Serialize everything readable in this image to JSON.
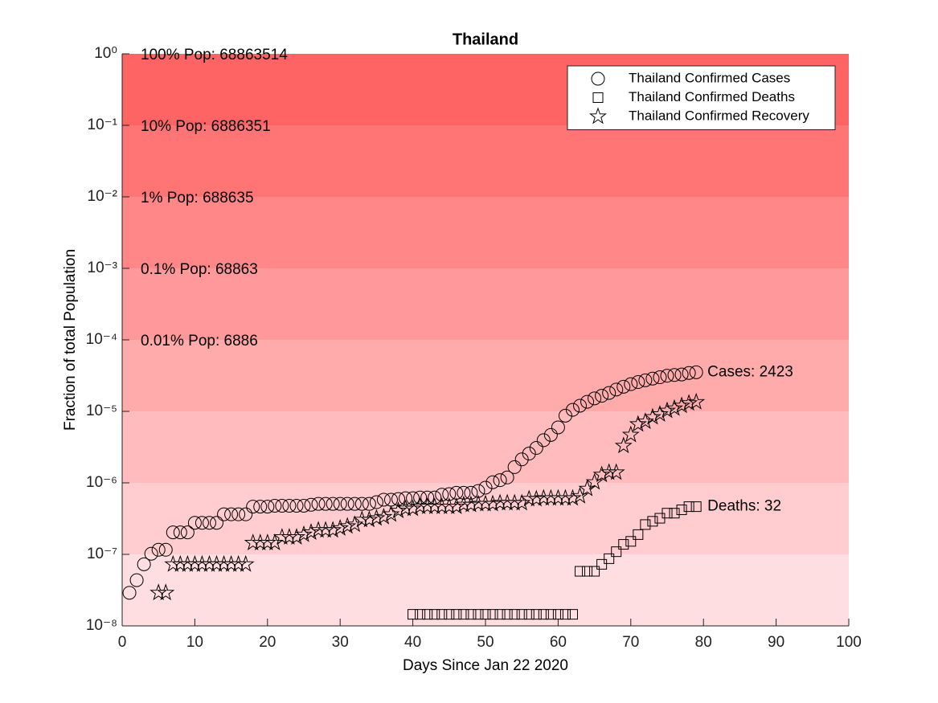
{
  "chart_data": {
    "type": "scatter",
    "title": "Thailand",
    "x_label": "Days Since Jan 22 2020",
    "y_label": "Fraction of total Population",
    "log_y": true,
    "legend": "top-right",
    "xlim": [
      0,
      100
    ],
    "xticks": [
      0,
      10,
      20,
      30,
      40,
      50,
      60,
      70,
      80,
      90,
      100
    ],
    "ylim": [
      1e-08,
      1
    ],
    "yticks": [
      {
        "value": 1e-08,
        "label": "10⁻⁸"
      },
      {
        "value": 1e-07,
        "label": "10⁻⁷"
      },
      {
        "value": 1e-06,
        "label": "10⁻⁶"
      },
      {
        "value": 1e-05,
        "label": "10⁻⁵"
      },
      {
        "value": 0.0001,
        "label": "10⁻⁴"
      },
      {
        "value": 0.001,
        "label": "10⁻³"
      },
      {
        "value": 0.01,
        "label": "10⁻²"
      },
      {
        "value": 0.1,
        "label": "10⁻¹"
      },
      {
        "value": 1,
        "label": "10⁰"
      }
    ],
    "population_labels": [
      "0.01% Pop: 6886",
      "0.1% Pop: 68863",
      "1% Pop: 688635",
      "10% Pop: 6886351",
      "100% Pop: 68863514"
    ],
    "end_labels": [
      "Cases: 2423",
      "Deaths: 32"
    ],
    "series": [
      {
        "name": "Thailand Confirmed Cases",
        "color": "#000000",
        "marker": "circle",
        "x": [
          1,
          2,
          3,
          4,
          5,
          6,
          7,
          8,
          9,
          10,
          11,
          12,
          13,
          14,
          15,
          16,
          17,
          18,
          19,
          20,
          21,
          22,
          23,
          24,
          25,
          26,
          27,
          28,
          29,
          30,
          31,
          32,
          33,
          34,
          35,
          36,
          37,
          38,
          39,
          40,
          41,
          42,
          43,
          44,
          45,
          46,
          47,
          48,
          49,
          50,
          51,
          52,
          53,
          54,
          55,
          56,
          57,
          58,
          59,
          60,
          61,
          62,
          63,
          64,
          65,
          66,
          67,
          68,
          69,
          70,
          71,
          72,
          73,
          74,
          75,
          76,
          77,
          78,
          79
        ],
        "values": [
          2.9e-08,
          4.36e-08,
          7.26e-08,
          1.02e-07,
          1.16e-07,
          1.16e-07,
          2.03e-07,
          2.03e-07,
          2.03e-07,
          2.76e-07,
          2.76e-07,
          2.76e-07,
          2.76e-07,
          3.63e-07,
          3.63e-07,
          3.63e-07,
          3.63e-07,
          4.65e-07,
          4.65e-07,
          4.65e-07,
          4.79e-07,
          4.79e-07,
          4.79e-07,
          4.79e-07,
          4.79e-07,
          4.94e-07,
          5.08e-07,
          5.08e-07,
          5.08e-07,
          5.08e-07,
          5.08e-07,
          5.08e-07,
          5.08e-07,
          5.08e-07,
          5.37e-07,
          5.81e-07,
          5.81e-07,
          5.95e-07,
          6.1e-07,
          6.1e-07,
          6.24e-07,
          6.24e-07,
          6.24e-07,
          6.83e-07,
          6.97e-07,
          7.26e-07,
          7.26e-07,
          7.26e-07,
          7.7e-07,
          8.57e-07,
          1.02e-06,
          1.09e-06,
          1.19e-06,
          1.66e-06,
          2.13e-06,
          2.57e-06,
          3.08e-06,
          3.95e-06,
          4.68e-06,
          5.97e-06,
          8.7e-06,
          1.05e-05,
          1.2e-05,
          1.36e-05,
          1.52e-05,
          1.65e-05,
          1.81e-05,
          2.02e-05,
          2.21e-05,
          2.4e-05,
          2.57e-05,
          2.72e-05,
          2.87e-05,
          3e-05,
          3.15e-05,
          3.22e-05,
          3.28e-05,
          3.44e-05,
          3.52e-05
        ]
      },
      {
        "name": "Thailand Confirmed Deaths",
        "color": "#000000",
        "marker": "square",
        "x": [
          40,
          41,
          42,
          43,
          44,
          45,
          46,
          47,
          48,
          49,
          50,
          51,
          52,
          53,
          54,
          55,
          56,
          57,
          58,
          59,
          60,
          61,
          62,
          63,
          64,
          65,
          66,
          67,
          68,
          69,
          70,
          71,
          72,
          73,
          74,
          75,
          76,
          77,
          78,
          79
        ],
        "values": [
          1.45e-08,
          1.45e-08,
          1.45e-08,
          1.45e-08,
          1.45e-08,
          1.45e-08,
          1.45e-08,
          1.45e-08,
          1.45e-08,
          1.45e-08,
          1.45e-08,
          1.45e-08,
          1.45e-08,
          1.45e-08,
          1.45e-08,
          1.45e-08,
          1.45e-08,
          1.45e-08,
          1.45e-08,
          1.45e-08,
          1.45e-08,
          1.45e-08,
          1.45e-08,
          5.8e-08,
          5.8e-08,
          5.8e-08,
          7.26e-08,
          8.7e-08,
          1.09e-07,
          1.38e-07,
          1.52e-07,
          1.89e-07,
          2.61e-07,
          2.9e-07,
          3.2e-07,
          3.77e-07,
          3.77e-07,
          4.2e-07,
          4.65e-07,
          4.65e-07
        ]
      },
      {
        "name": "Thailand Confirmed Recovery",
        "color": "#000000",
        "marker": "star",
        "x": [
          5,
          6,
          7,
          8,
          9,
          10,
          11,
          12,
          13,
          14,
          15,
          16,
          17,
          18,
          19,
          20,
          21,
          22,
          23,
          24,
          25,
          26,
          27,
          28,
          29,
          30,
          31,
          32,
          33,
          34,
          35,
          36,
          37,
          38,
          39,
          40,
          41,
          42,
          43,
          44,
          45,
          46,
          47,
          48,
          49,
          50,
          51,
          52,
          53,
          54,
          55,
          56,
          57,
          58,
          59,
          60,
          61,
          62,
          63,
          64,
          65,
          66,
          67,
          68,
          69,
          70,
          71,
          72,
          73,
          74,
          75,
          76,
          77,
          78,
          79
        ],
        "values": [
          2.9e-08,
          2.9e-08,
          7.26e-08,
          7.26e-08,
          7.26e-08,
          7.26e-08,
          7.26e-08,
          7.26e-08,
          7.26e-08,
          7.26e-08,
          7.26e-08,
          7.26e-08,
          7.26e-08,
          1.45e-07,
          1.45e-07,
          1.45e-07,
          1.45e-07,
          1.74e-07,
          1.74e-07,
          1.74e-07,
          1.89e-07,
          2.03e-07,
          2.18e-07,
          2.18e-07,
          2.18e-07,
          2.32e-07,
          2.47e-07,
          2.61e-07,
          3.05e-07,
          3.05e-07,
          3.2e-07,
          3.34e-07,
          3.63e-07,
          4.07e-07,
          4.36e-07,
          4.36e-07,
          4.65e-07,
          4.65e-07,
          4.65e-07,
          4.65e-07,
          4.65e-07,
          4.65e-07,
          4.94e-07,
          4.94e-07,
          5.08e-07,
          5.08e-07,
          5.08e-07,
          5.23e-07,
          5.23e-07,
          5.23e-07,
          5.23e-07,
          5.95e-07,
          5.95e-07,
          6.1e-07,
          6.1e-07,
          6.1e-07,
          6.1e-07,
          6.1e-07,
          6.54e-07,
          8.28e-07,
          1.02e-06,
          1.3e-06,
          1.4e-06,
          1.4e-06,
          3.3e-06,
          4.7e-06,
          6.6e-06,
          7.2e-06,
          8.3e-06,
          9.1e-06,
          1.02e-05,
          1.1e-05,
          1.2e-05,
          1.3e-05,
          1.35e-05
        ]
      }
    ]
  }
}
